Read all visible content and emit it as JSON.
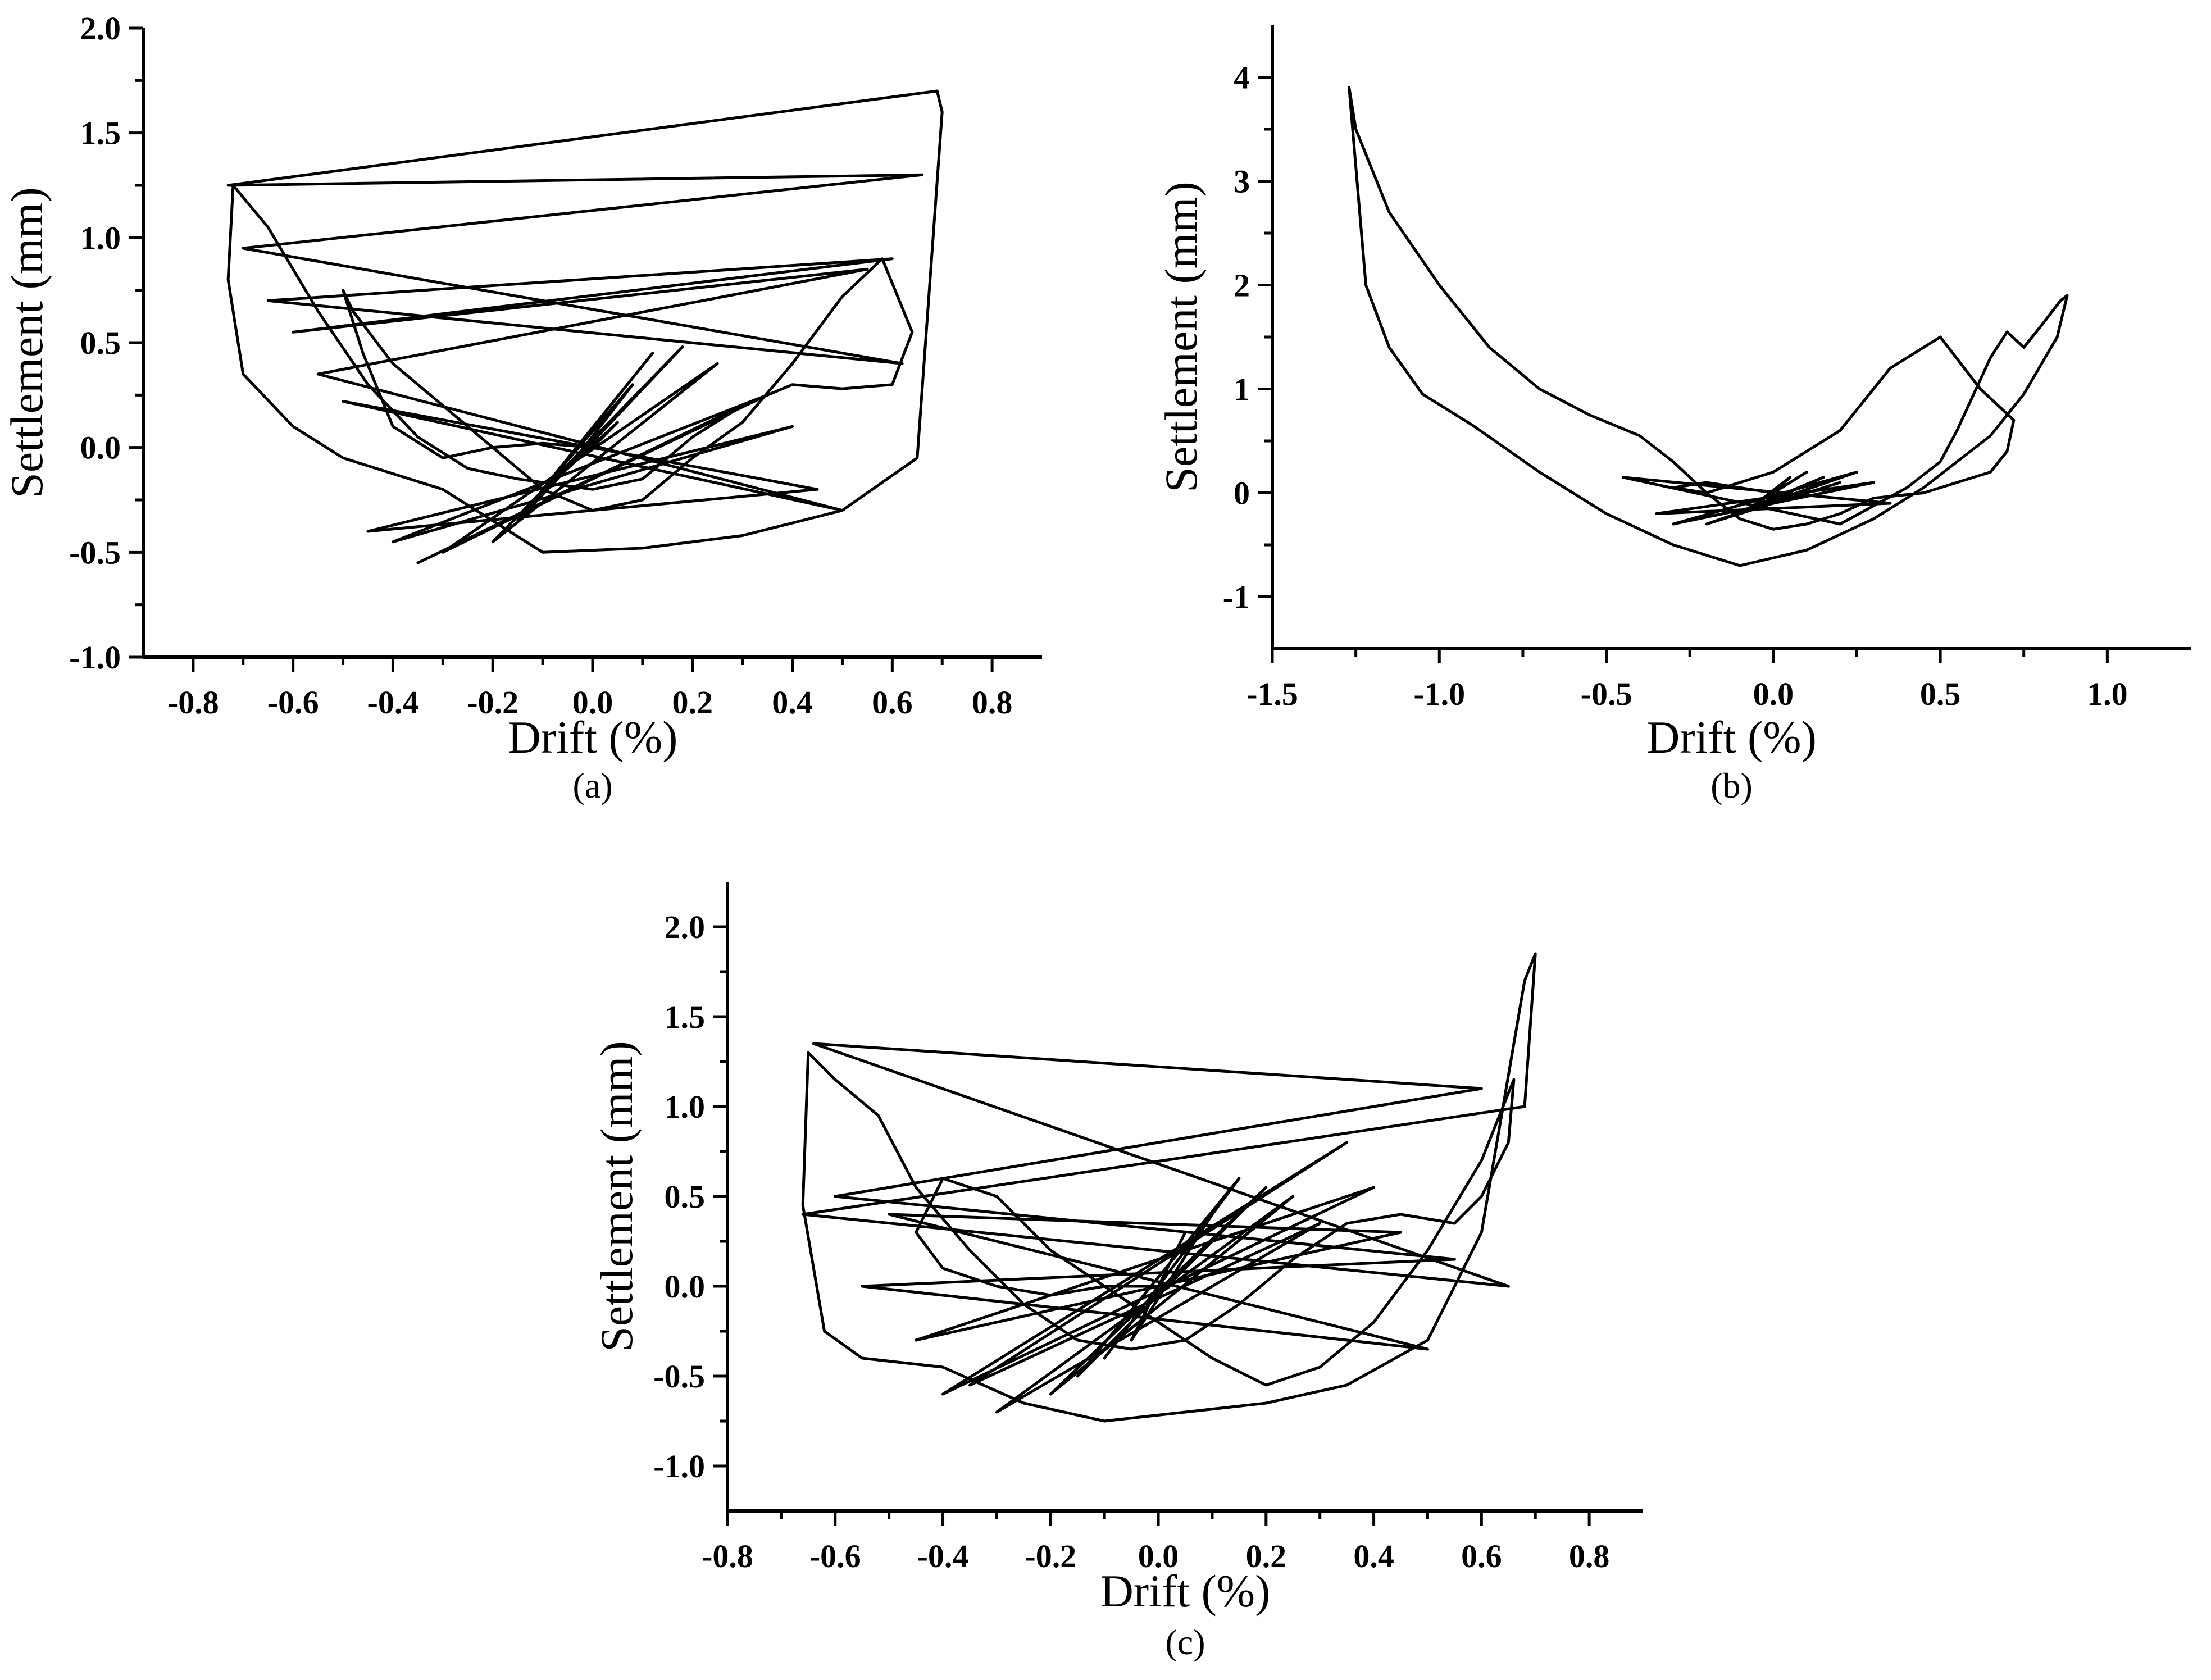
{
  "chart_data": [
    {
      "id": "a",
      "type": "line",
      "panel_label": "(a)",
      "xlabel": "Drift (%)",
      "ylabel": "Settlement (mm)",
      "xlim": [
        -0.9,
        0.9
      ],
      "ylim": [
        -1.0,
        2.0
      ],
      "xticks": [
        "-0.8",
        "-0.6",
        "-0.4",
        "-0.2",
        "0.0",
        "0.2",
        "0.4",
        "0.6",
        "0.8"
      ],
      "yticks": [
        "-1.0",
        "-0.5",
        "0.0",
        "0.5",
        "1.0",
        "1.5",
        "2.0"
      ],
      "series": [
        {
          "name": "hysteresis",
          "x": [
            0.0,
            0.05,
            -0.05,
            0.08,
            -0.1,
            0.12,
            -0.15,
            0.18,
            -0.2,
            0.25,
            -0.3,
            0.3,
            -0.35,
            0.35,
            -0.4,
            0.4,
            -0.45,
            0.45,
            -0.5,
            0.5,
            -0.55,
            0.55,
            -0.6,
            0.6,
            -0.65,
            0.62,
            -0.7,
            0.66,
            -0.73,
            0.69,
            0.7,
            0.65,
            0.5,
            0.3,
            0.1,
            -0.1,
            -0.3,
            -0.5,
            -0.6,
            -0.7,
            -0.73,
            -0.72,
            -0.65,
            -0.55,
            -0.45,
            -0.35,
            -0.25,
            -0.15,
            0.0,
            0.1,
            0.2,
            0.3,
            0.4,
            0.5,
            0.6,
            0.64,
            0.58,
            0.5,
            0.4,
            0.3,
            0.2,
            0.1,
            0.0,
            -0.1,
            -0.2,
            -0.3,
            -0.4,
            -0.48,
            -0.5,
            -0.46,
            -0.4,
            -0.3,
            -0.2,
            -0.1,
            0.0
          ],
          "y": [
            0.0,
            0.12,
            -0.1,
            0.3,
            -0.2,
            0.45,
            -0.35,
            0.48,
            -0.45,
            0.4,
            -0.5,
            0.2,
            -0.55,
            0.25,
            -0.45,
            0.1,
            -0.4,
            -0.2,
            0.22,
            -0.3,
            0.35,
            0.85,
            0.55,
            0.9,
            0.7,
            0.4,
            0.95,
            1.3,
            1.25,
            1.7,
            1.6,
            -0.05,
            -0.3,
            -0.42,
            -0.48,
            -0.5,
            -0.2,
            -0.05,
            0.1,
            0.35,
            0.8,
            1.25,
            1.05,
            0.65,
            0.3,
            0.05,
            -0.1,
            -0.15,
            -0.2,
            -0.15,
            0.05,
            0.2,
            0.3,
            0.28,
            0.3,
            0.55,
            0.9,
            0.72,
            0.4,
            0.12,
            -0.05,
            -0.25,
            -0.3,
            -0.2,
            0.0,
            0.2,
            0.4,
            0.65,
            0.75,
            0.45,
            0.1,
            -0.05,
            0.0,
            0.02,
            0.0
          ]
        }
      ]
    },
    {
      "id": "b",
      "type": "line",
      "panel_label": "(b)",
      "xlabel": "Drift (%)",
      "ylabel": "Settlement (mm)",
      "xlim": [
        -1.5,
        1.25
      ],
      "ylim": [
        -1.5,
        4.5
      ],
      "xticks": [
        "-1.5",
        "-1.0",
        "-0.5",
        "0.0",
        "0.5",
        "1.0"
      ],
      "yticks": [
        "-1",
        "0",
        "1",
        "2",
        "3",
        "4"
      ],
      "series": [
        {
          "name": "hysteresis",
          "x": [
            0.0,
            0.05,
            -0.05,
            0.1,
            -0.1,
            0.15,
            -0.15,
            0.2,
            -0.2,
            0.25,
            -0.3,
            0.3,
            -0.35,
            0.35,
            -0.45,
            0.2,
            0.4,
            0.5,
            0.55,
            0.65,
            0.7,
            0.75,
            0.8,
            0.86,
            0.88,
            0.85,
            0.75,
            0.65,
            0.55,
            0.45,
            0.3,
            0.1,
            -0.1,
            -0.3,
            -0.5,
            -0.7,
            -0.9,
            -1.05,
            -1.15,
            -1.22,
            -1.27,
            -1.25,
            -1.15,
            -1.0,
            -0.85,
            -0.7,
            -0.55,
            -0.4,
            -0.3,
            -0.2,
            -0.1,
            0.0,
            0.1,
            0.2,
            0.3,
            0.45,
            0.55,
            0.65,
            0.7,
            0.72,
            0.62,
            0.5,
            0.35,
            0.2,
            0.0,
            -0.2,
            -0.3,
            -0.2,
            -0.1,
            0.0
          ],
          "y": [
            0.0,
            0.15,
            -0.1,
            0.2,
            -0.2,
            0.15,
            -0.25,
            0.1,
            -0.3,
            0.2,
            -0.3,
            0.1,
            -0.2,
            -0.1,
            0.15,
            -0.3,
            0.05,
            0.3,
            0.6,
            1.3,
            1.55,
            1.4,
            1.6,
            1.85,
            1.9,
            1.5,
            0.95,
            0.55,
            0.3,
            0.05,
            -0.25,
            -0.55,
            -0.7,
            -0.5,
            -0.2,
            0.2,
            0.65,
            0.95,
            1.4,
            2.0,
            3.9,
            3.5,
            2.7,
            2.0,
            1.4,
            1.0,
            0.75,
            0.55,
            0.3,
            0.0,
            -0.25,
            -0.35,
            -0.3,
            -0.2,
            -0.05,
            0.0,
            0.1,
            0.2,
            0.4,
            0.7,
            1.0,
            1.5,
            1.2,
            0.6,
            0.2,
            0.0,
            0.05,
            0.1,
            0.05,
            0.0
          ]
        }
      ]
    },
    {
      "id": "c",
      "type": "line",
      "panel_label": "(c)",
      "xlabel": "Drift (%)",
      "ylabel": "Settlement (mm)",
      "xlim": [
        -0.8,
        0.9
      ],
      "ylim": [
        -1.25,
        2.25
      ],
      "xticks": [
        "-0.8",
        "-0.6",
        "-0.4",
        "-0.2",
        "0.0",
        "0.2",
        "0.4",
        "0.6",
        "0.8"
      ],
      "yticks": [
        "-1.0",
        "-0.5",
        "0.0",
        "0.5",
        "1.0",
        "1.5",
        "2.0"
      ],
      "series": [
        {
          "name": "hysteresis",
          "x": [
            0.0,
            0.05,
            -0.05,
            0.1,
            -0.1,
            0.15,
            -0.15,
            0.2,
            -0.2,
            0.25,
            -0.3,
            0.3,
            -0.35,
            0.35,
            -0.4,
            0.4,
            -0.45,
            0.45,
            -0.5,
            0.5,
            -0.55,
            0.55,
            -0.6,
            0.6,
            -0.64,
            0.65,
            -0.66,
            0.68,
            0.7,
            0.68,
            0.6,
            0.5,
            0.35,
            0.2,
            0.05,
            -0.1,
            -0.25,
            -0.4,
            -0.55,
            -0.62,
            -0.66,
            -0.65,
            -0.6,
            -0.52,
            -0.45,
            -0.35,
            -0.25,
            -0.15,
            -0.05,
            0.05,
            0.15,
            0.25,
            0.35,
            0.45,
            0.55,
            0.6,
            0.65,
            0.66,
            0.6,
            0.5,
            0.4,
            0.3,
            0.2,
            0.1,
            0.0,
            -0.1,
            -0.2,
            -0.3,
            -0.4,
            -0.45,
            -0.4,
            -0.3,
            -0.2,
            -0.1,
            0.0
          ],
          "y": [
            0.0,
            0.3,
            -0.3,
            0.4,
            -0.4,
            0.6,
            -0.5,
            0.55,
            -0.6,
            0.5,
            -0.7,
            0.35,
            -0.55,
            0.8,
            -0.6,
            0.55,
            -0.3,
            0.3,
            0.4,
            -0.35,
            0.0,
            0.15,
            0.5,
            1.1,
            1.35,
            0.0,
            0.4,
            1.0,
            1.85,
            1.7,
            0.3,
            -0.3,
            -0.55,
            -0.65,
            -0.7,
            -0.75,
            -0.65,
            -0.45,
            -0.4,
            -0.25,
            0.45,
            1.3,
            1.15,
            0.95,
            0.55,
            0.2,
            -0.1,
            -0.3,
            -0.35,
            -0.3,
            -0.1,
            0.15,
            0.35,
            0.4,
            0.35,
            0.5,
            0.8,
            1.15,
            0.7,
            0.2,
            -0.2,
            -0.45,
            -0.55,
            -0.4,
            -0.2,
            0.0,
            0.2,
            0.5,
            0.6,
            0.3,
            0.1,
            0.0,
            -0.05,
            0.0,
            0.0
          ]
        }
      ]
    }
  ]
}
